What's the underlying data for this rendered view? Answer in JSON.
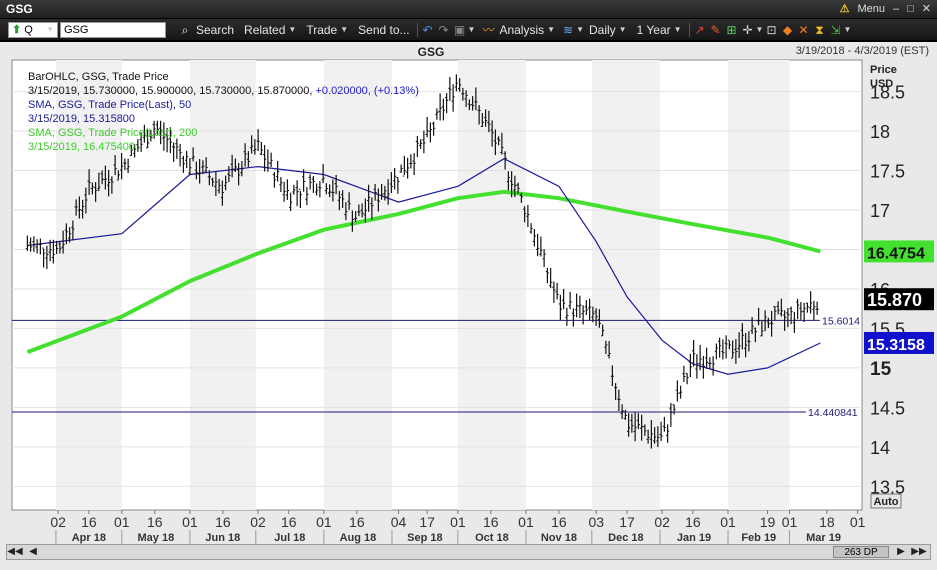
{
  "window": {
    "title": "GSG",
    "menu_label": "Menu"
  },
  "toolbar": {
    "symbol_mode": "Q",
    "symbol_value": "GSG",
    "search": "Search",
    "related": "Related",
    "trade": "Trade",
    "send_to": "Send to...",
    "analysis": "Analysis",
    "period": "Daily",
    "span": "1 Year"
  },
  "chart_header": {
    "symbol": "GSG",
    "date_range": "3/19/2018 - 4/3/2019 (EST)"
  },
  "legend": {
    "line1": "BarOHLC, GSG, Trade Price",
    "line2_prefix": "3/15/2019, 15.730000, 15.900000, 15.730000, 15.870000,",
    "line2_change": "+0.020000, (+0.13%)",
    "line3": "SMA, GSG, Trade Price(Last), 50",
    "line4": "3/15/2019, 15.315800",
    "line5": "SMA, GSG, Trade Price(Last), 200",
    "line6": "3/15/2019, 16.475400"
  },
  "axis": {
    "price_title": "Price",
    "currency": "USD",
    "auto_label": "Auto",
    "scroll_info": "263 DP"
  },
  "price_tags": {
    "sma200": "16.4754",
    "last": "15.870",
    "sma50": "15.3158"
  },
  "colors": {
    "sma200": "#44e030",
    "sma50": "#1a1a9a",
    "price": "#111111",
    "last_tag": "#000000",
    "sma50_tag": "#1010cc",
    "sma200_tag": "#44e030"
  },
  "chart_data": {
    "type": "line",
    "ylim": [
      13.2,
      18.9
    ],
    "yticks": [
      13.5,
      14,
      14.5,
      15,
      15.5,
      16,
      16.5,
      17,
      17.5,
      18,
      18.5
    ],
    "x_ticks": [
      "02",
      "16",
      "01",
      "16",
      "01",
      "16",
      "02",
      "16",
      "01",
      "16",
      "04",
      "17",
      "01",
      "16",
      "01",
      "16",
      "03",
      "17",
      "02",
      "16",
      "01",
      "19",
      "01",
      "18",
      "01"
    ],
    "months": [
      "Apr 18",
      "May 18",
      "Jun 18",
      "Jul 18",
      "Aug 18",
      "Sep 18",
      "Oct 18",
      "Nov 18",
      "Dec 18",
      "Jan 19",
      "Feb 19",
      "Mar 19"
    ],
    "price_close": [
      [
        "2018-03-19",
        16.55
      ],
      [
        "2018-04-02",
        16.5
      ],
      [
        "2018-04-16",
        17.25
      ],
      [
        "2018-05-01",
        17.55
      ],
      [
        "2018-05-16",
        18.05
      ],
      [
        "2018-06-01",
        17.6
      ],
      [
        "2018-06-16",
        17.3
      ],
      [
        "2018-07-02",
        17.8
      ],
      [
        "2018-07-16",
        17.2
      ],
      [
        "2018-08-01",
        17.4
      ],
      [
        "2018-08-16",
        16.9
      ],
      [
        "2018-09-04",
        17.45
      ],
      [
        "2018-09-17",
        17.9
      ],
      [
        "2018-10-01",
        18.65
      ],
      [
        "2018-10-16",
        18.0
      ],
      [
        "2018-11-01",
        17.0
      ],
      [
        "2018-11-16",
        15.8
      ],
      [
        "2018-12-03",
        15.65
      ],
      [
        "2018-12-17",
        14.3
      ],
      [
        "2019-01-02",
        14.1
      ],
      [
        "2019-01-16",
        15.1
      ],
      [
        "2019-02-01",
        15.2
      ],
      [
        "2019-02-19",
        15.6
      ],
      [
        "2019-03-01",
        15.65
      ],
      [
        "2019-03-15",
        15.87
      ]
    ],
    "sma50": [
      [
        "2018-03-19",
        16.55
      ],
      [
        "2018-05-01",
        16.7
      ],
      [
        "2018-06-01",
        17.45
      ],
      [
        "2018-07-02",
        17.55
      ],
      [
        "2018-08-01",
        17.45
      ],
      [
        "2018-09-04",
        17.1
      ],
      [
        "2018-10-01",
        17.3
      ],
      [
        "2018-10-22",
        17.65
      ],
      [
        "2018-11-16",
        17.3
      ],
      [
        "2018-12-03",
        16.6
      ],
      [
        "2018-12-17",
        15.9
      ],
      [
        "2019-01-02",
        15.35
      ],
      [
        "2019-01-16",
        15.05
      ],
      [
        "2019-02-01",
        14.92
      ],
      [
        "2019-02-19",
        15.0
      ],
      [
        "2019-03-15",
        15.3158
      ]
    ],
    "sma200": [
      [
        "2018-03-19",
        15.2
      ],
      [
        "2018-05-01",
        15.65
      ],
      [
        "2018-06-01",
        16.1
      ],
      [
        "2018-07-02",
        16.45
      ],
      [
        "2018-08-01",
        16.75
      ],
      [
        "2018-09-04",
        16.95
      ],
      [
        "2018-10-01",
        17.15
      ],
      [
        "2018-10-22",
        17.23
      ],
      [
        "2018-11-16",
        17.15
      ],
      [
        "2018-12-17",
        16.98
      ],
      [
        "2019-01-16",
        16.82
      ],
      [
        "2019-02-19",
        16.65
      ],
      [
        "2019-03-15",
        16.4754
      ]
    ],
    "hlines": [
      {
        "value": 15.6014,
        "label": "15.6014"
      },
      {
        "value": 14.440841,
        "label": "14.440841"
      }
    ]
  }
}
